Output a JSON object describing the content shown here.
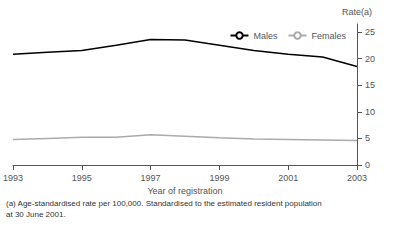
{
  "chart_data": {
    "type": "line",
    "x": [
      1993,
      1994,
      1995,
      1996,
      1997,
      1998,
      1999,
      2000,
      2001,
      2002,
      2003
    ],
    "series": [
      {
        "name": "Males",
        "color": "#000000",
        "values": [
          20.8,
          21.2,
          21.5,
          22.5,
          23.6,
          23.5,
          22.5,
          21.5,
          20.8,
          20.3,
          18.5
        ]
      },
      {
        "name": "Females",
        "color": "#aaaaaa",
        "values": [
          4.8,
          5.0,
          5.2,
          5.2,
          5.7,
          5.4,
          5.1,
          4.9,
          4.8,
          4.7,
          4.6
        ]
      }
    ],
    "xlabel": "Year of registration",
    "ylabel": "Rate(a)",
    "xlim": [
      1993,
      2003
    ],
    "xticks": [
      1993,
      1995,
      1997,
      1999,
      2001,
      2003
    ],
    "ylim": [
      0,
      26.5
    ],
    "yticks": [
      0,
      5,
      10,
      15,
      20,
      25
    ],
    "grid": false,
    "legend": "upper right",
    "annotations": [
      "(a) Age-standardised rate per 100,000. Standardised to the estimated resident population",
      "at 30 June 2001."
    ]
  }
}
